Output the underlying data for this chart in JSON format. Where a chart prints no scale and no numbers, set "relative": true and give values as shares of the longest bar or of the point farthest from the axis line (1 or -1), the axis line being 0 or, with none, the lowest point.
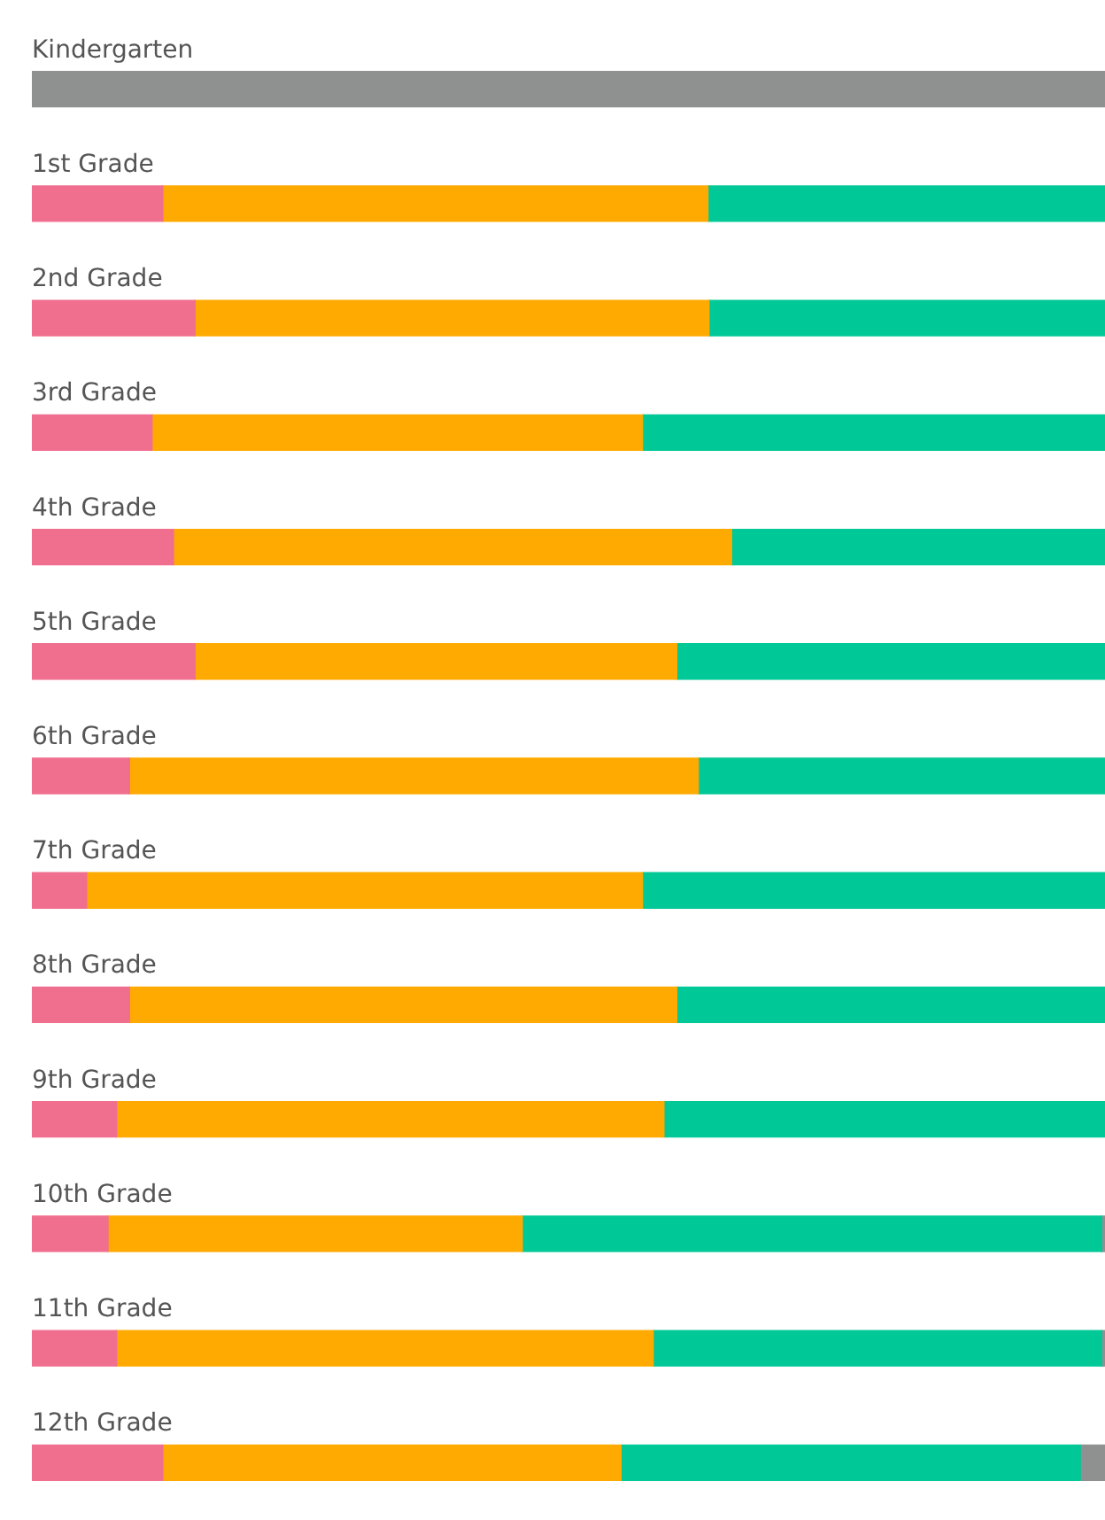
{
  "chart_data": {
    "type": "bar",
    "orientation": "horizontal",
    "stacked": true,
    "relative": true,
    "legend": false,
    "categories": [
      "Kindergarten",
      "1st Grade",
      "2nd Grade",
      "3rd Grade",
      "4th Grade",
      "5th Grade",
      "6th Grade",
      "7th Grade",
      "8th Grade",
      "9th Grade",
      "10th Grade",
      "11th Grade",
      "12th Grade"
    ],
    "series": [
      {
        "color": "#f06e8e",
        "values": [
          null,
          0.122,
          0.152,
          0.112,
          0.132,
          0.152,
          0.091,
          0.051,
          0.091,
          0.079,
          0.071,
          0.079,
          0.122
        ]
      },
      {
        "color": "#ffaa00",
        "values": [
          null,
          0.508,
          0.479,
          0.457,
          0.52,
          0.449,
          0.53,
          0.518,
          0.51,
          0.51,
          0.386,
          0.5,
          0.427
        ]
      },
      {
        "color": "#00c896",
        "values": [
          null,
          0.37,
          0.369,
          0.431,
          0.348,
          0.399,
          0.379,
          0.431,
          0.399,
          0.411,
          0.54,
          0.418,
          0.428
        ]
      },
      {
        "color": "#8f9191",
        "values": [
          1,
          null,
          null,
          null,
          null,
          null,
          null,
          null,
          null,
          null,
          0.003,
          0.003,
          0.023
        ]
      }
    ]
  }
}
